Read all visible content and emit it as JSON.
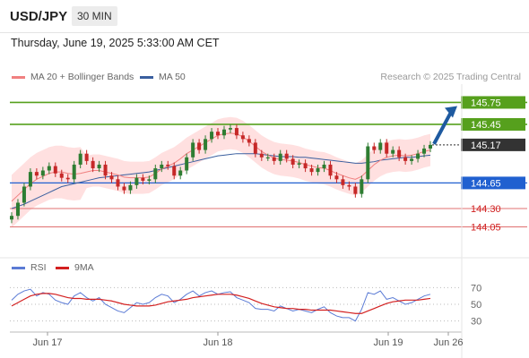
{
  "header": {
    "symbol": "USD/JPY",
    "timeframe": "30 MIN"
  },
  "datetime": "Thursday, June 19, 2025 5:33:00 AM CET",
  "legend": {
    "ma20_label": "MA 20 + Bollinger Bands",
    "ma50_label": "MA 50",
    "source": "Research © 2025 Trading Central",
    "rsi_label": "RSI",
    "rsi_ma_label": "9MA"
  },
  "colors": {
    "ma20": "#f08080",
    "bands": "#ffd6d6",
    "ma50": "#3a5f9f",
    "candle_up": "#2e7d32",
    "candle_down": "#c62828",
    "target": "#56a01d",
    "support": "#2060d0",
    "pivot": "#e07070",
    "arrow": "#1e5aa0",
    "rsi": "#5b7bd5",
    "rsi_ma": "#d32020"
  },
  "chart_data": {
    "type": "candlestick",
    "series_summary": "USD/JPY 30-minute candles from Jun 17 to Jun 19 with MA 20, Bollinger Bands and MA 50",
    "ylim": [
      143.75,
      146.0
    ],
    "x_ticks": [
      "Jun 17",
      "Jun 18",
      "Jun 19",
      "Jun 26"
    ],
    "levels": [
      {
        "value": 145.75,
        "label": "145.75",
        "kind": "target"
      },
      {
        "value": 145.45,
        "label": "145.45",
        "kind": "target"
      },
      {
        "value": 145.17,
        "label": "145.17",
        "kind": "last"
      },
      {
        "value": 144.65,
        "label": "144.65",
        "kind": "pivot"
      },
      {
        "value": 144.3,
        "label": "144.30",
        "kind": "support"
      },
      {
        "value": 144.05,
        "label": "144.05",
        "kind": "support"
      }
    ],
    "price_points": [
      144.2,
      144.38,
      144.6,
      144.8,
      144.75,
      144.82,
      144.88,
      144.78,
      144.72,
      144.7,
      144.9,
      145.05,
      144.95,
      144.85,
      144.9,
      144.75,
      144.7,
      144.6,
      144.55,
      144.62,
      144.72,
      144.68,
      144.7,
      144.85,
      144.9,
      144.88,
      144.75,
      144.82,
      145.0,
      145.2,
      145.1,
      145.25,
      145.35,
      145.3,
      145.38,
      145.4,
      145.3,
      145.25,
      145.2,
      145.05,
      145.0,
      145.0,
      144.95,
      145.05,
      144.98,
      144.9,
      144.92,
      144.85,
      144.8,
      144.85,
      144.9,
      144.75,
      144.7,
      144.62,
      144.6,
      144.5,
      144.7,
      145.15,
      145.1,
      145.2,
      145.05,
      145.1,
      145.0,
      144.95,
      144.98,
      145.05,
      145.12,
      145.17
    ],
    "ma20": [
      144.4,
      144.48,
      144.56,
      144.64,
      144.7,
      144.74,
      144.78,
      144.8,
      144.8,
      144.78,
      144.77,
      144.78,
      144.8,
      144.82,
      144.82,
      144.8,
      144.78,
      144.76,
      144.73,
      144.72,
      144.72,
      144.72,
      144.73,
      144.78,
      144.84,
      144.88,
      144.92,
      144.98,
      145.05,
      145.1,
      145.15,
      145.2,
      145.25,
      145.3,
      145.32,
      145.33,
      145.32,
      145.28,
      145.22,
      145.15,
      145.08,
      145.03,
      144.99,
      144.97,
      144.96,
      144.95,
      144.93,
      144.9,
      144.88,
      144.86,
      144.85,
      144.82,
      144.78,
      144.75,
      144.72,
      144.7,
      144.74,
      144.82,
      144.9,
      144.96,
      145.0,
      145.02,
      145.03,
      145.02,
      145.03,
      145.05,
      145.08,
      145.1
    ],
    "ma50": [
      144.3,
      144.33,
      144.36,
      144.4,
      144.44,
      144.48,
      144.52,
      144.56,
      144.6,
      144.62,
      144.64,
      144.66,
      144.68,
      144.7,
      144.72,
      144.73,
      144.74,
      144.75,
      144.76,
      144.77,
      144.78,
      144.79,
      144.8,
      144.82,
      144.84,
      144.86,
      144.88,
      144.9,
      144.92,
      144.94,
      144.96,
      144.98,
      145.0,
      145.02,
      145.03,
      145.04,
      145.05,
      145.05,
      145.05,
      145.05,
      145.04,
      145.03,
      145.02,
      145.01,
      145.01,
      145.01,
      145.0,
      145.0,
      144.99,
      144.98,
      144.97,
      144.96,
      144.95,
      144.94,
      144.93,
      144.92,
      144.92,
      144.93,
      144.94,
      144.96,
      144.97,
      144.98,
      144.99,
      145.0,
      145.0,
      145.01,
      145.02,
      145.03
    ],
    "rsi_ticks": [
      70,
      50,
      30
    ],
    "rsi_ylim": [
      20,
      80
    ],
    "rsi": [
      55,
      62,
      66,
      68,
      60,
      64,
      62,
      55,
      52,
      50,
      60,
      64,
      58,
      54,
      58,
      50,
      46,
      42,
      40,
      46,
      52,
      50,
      52,
      58,
      62,
      60,
      52,
      56,
      62,
      66,
      60,
      64,
      66,
      62,
      64,
      65,
      58,
      55,
      52,
      45,
      44,
      44,
      42,
      48,
      45,
      42,
      44,
      42,
      40,
      44,
      47,
      40,
      36,
      34,
      34,
      30,
      44,
      64,
      62,
      66,
      56,
      58,
      54,
      50,
      52,
      56,
      60,
      62
    ],
    "rsi_ma": [
      48,
      52,
      56,
      60,
      62,
      63,
      63,
      62,
      60,
      58,
      57,
      57,
      56,
      56,
      56,
      55,
      54,
      52,
      50,
      49,
      48,
      48,
      48,
      49,
      51,
      53,
      54,
      55,
      56,
      58,
      59,
      60,
      61,
      62,
      62,
      62,
      61,
      59,
      57,
      54,
      51,
      49,
      47,
      46,
      45,
      45,
      44,
      44,
      43,
      43,
      43,
      43,
      42,
      41,
      40,
      39,
      39,
      42,
      45,
      48,
      51,
      53,
      54,
      55,
      55,
      55,
      56,
      57
    ],
    "projection": {
      "from": 145.17,
      "to": 145.75
    }
  }
}
